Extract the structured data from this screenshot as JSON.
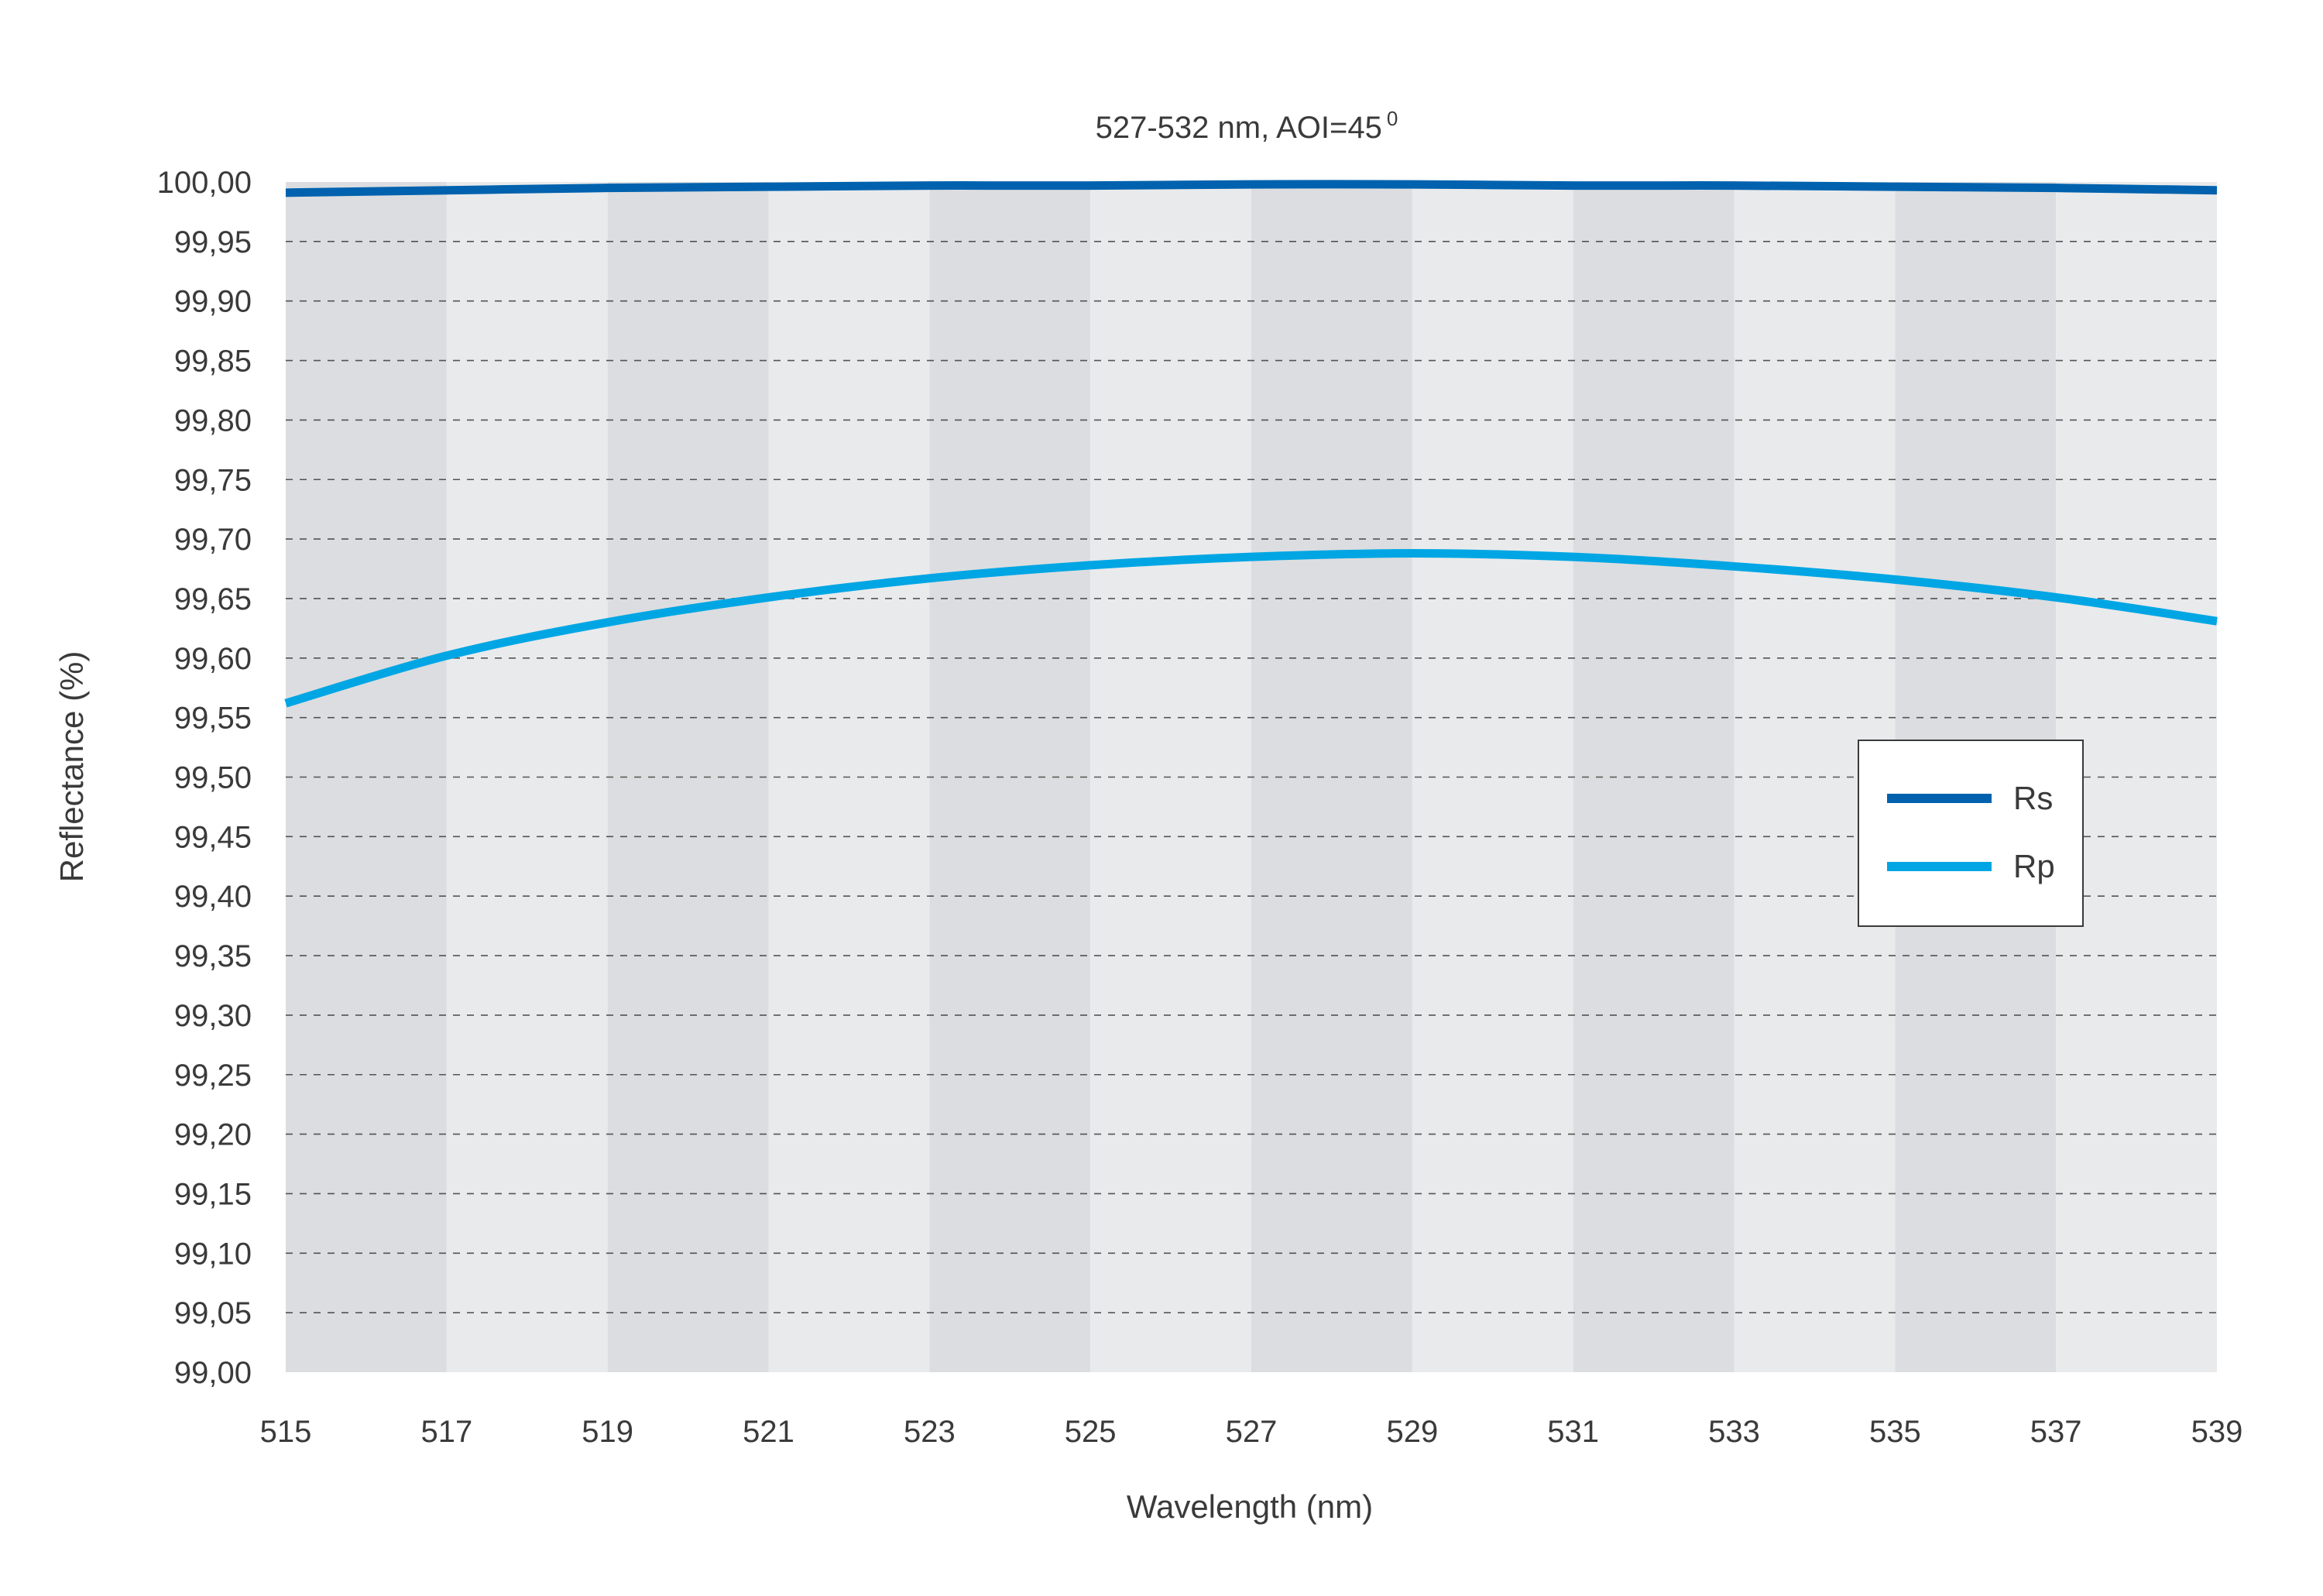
{
  "chart_data": {
    "type": "line",
    "title": "527-532 nm, AOI=45",
    "title_superscript": "0",
    "xlabel": "Wavelength (nm)",
    "ylabel": "Reflectance (%)",
    "xlim": [
      515,
      539
    ],
    "ylim": [
      99.0,
      100.0
    ],
    "x_ticks": [
      "515",
      "517",
      "519",
      "521",
      "523",
      "525",
      "527",
      "529",
      "531",
      "533",
      "535",
      "537",
      "539"
    ],
    "y_ticks": [
      "99,00",
      "99,05",
      "99,10",
      "99,15",
      "99,20",
      "99,25",
      "99,30",
      "99,35",
      "99,40",
      "99,45",
      "99,50",
      "99,55",
      "99,60",
      "99,65",
      "99,70",
      "99,75",
      "99,80",
      "99,85",
      "99,90",
      "99,95",
      "100,00"
    ],
    "grid": "horizontal dashed",
    "background": "alternating vertical gray bands every 2 nm",
    "legend_position": "right",
    "x": [
      515,
      517,
      519,
      521,
      523,
      525,
      527,
      529,
      531,
      533,
      535,
      537,
      539
    ],
    "series": [
      {
        "name": "Rs",
        "color": "#0062ae",
        "values": [
          99.991,
          99.993,
          99.995,
          99.996,
          99.997,
          99.997,
          99.998,
          99.998,
          99.997,
          99.997,
          99.996,
          99.995,
          99.993
        ]
      },
      {
        "name": "Rp",
        "color": "#00a6e4",
        "values": [
          99.562,
          99.602,
          99.63,
          99.651,
          99.667,
          99.678,
          99.685,
          99.688,
          99.685,
          99.677,
          99.666,
          99.651,
          99.631
        ]
      }
    ]
  },
  "colors": {
    "band_dark": "#dcdde0",
    "band_light": "#e9eaec",
    "grid": "#3a3a3a",
    "legend_border": "#3a3a3a"
  }
}
